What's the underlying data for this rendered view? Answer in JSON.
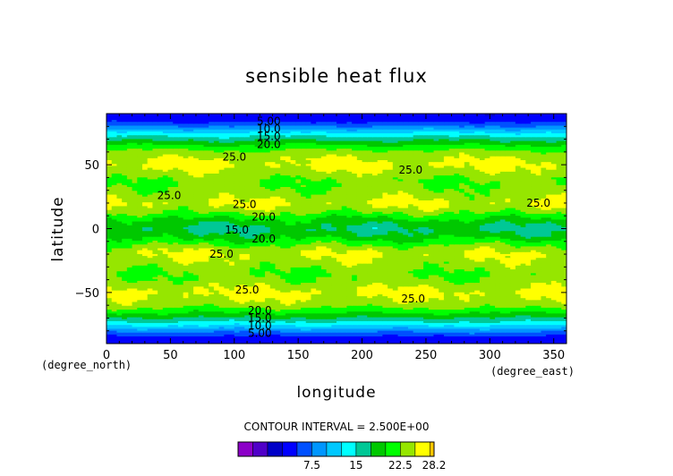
{
  "chart_data": {
    "type": "heatmap",
    "title": "sensible heat flux",
    "xlabel": "longitude",
    "ylabel": "latitude",
    "x_unit": "(degree_east)",
    "y_unit": "(degree_north)",
    "xlim": [
      0,
      360
    ],
    "ylim": [
      -90,
      90
    ],
    "x_ticks": [
      0,
      50,
      100,
      150,
      200,
      250,
      300,
      350
    ],
    "y_ticks": [
      50,
      0,
      -50
    ],
    "contour_interval_text": "CONTOUR INTERVAL = 2.500E+00",
    "contour_labels": [
      {
        "text": "5.00",
        "lon": 127,
        "lat": 84
      },
      {
        "text": "10.0",
        "lon": 127,
        "lat": 78
      },
      {
        "text": "15.0",
        "lon": 127,
        "lat": 72
      },
      {
        "text": "20.0",
        "lon": 127,
        "lat": 66
      },
      {
        "text": "25.0",
        "lon": 100,
        "lat": 56
      },
      {
        "text": "25.0",
        "lon": 238,
        "lat": 46
      },
      {
        "text": "25.0",
        "lon": 49,
        "lat": 26
      },
      {
        "text": "25.0",
        "lon": 108,
        "lat": 19
      },
      {
        "text": "25.0",
        "lon": 338,
        "lat": 20
      },
      {
        "text": "20.0",
        "lon": 123,
        "lat": 9
      },
      {
        "text": "15.0",
        "lon": 102,
        "lat": -1
      },
      {
        "text": "20.0",
        "lon": 123,
        "lat": -8
      },
      {
        "text": "25.0",
        "lon": 90,
        "lat": -20
      },
      {
        "text": "25.0",
        "lon": 110,
        "lat": -48
      },
      {
        "text": "25.0",
        "lon": 240,
        "lat": -55
      },
      {
        "text": "20.0",
        "lon": 120,
        "lat": -64
      },
      {
        "text": "15.0",
        "lon": 120,
        "lat": -70
      },
      {
        "text": "10.0",
        "lon": 120,
        "lat": -76
      },
      {
        "text": "5.00",
        "lon": 120,
        "lat": -82
      }
    ],
    "zonal_profile": {
      "lat": [
        -90,
        -85,
        -80,
        -75,
        -70,
        -65,
        -60,
        -55,
        -50,
        -45,
        -40,
        -35,
        -30,
        -25,
        -20,
        -15,
        -10,
        -5,
        0,
        5,
        10,
        15,
        20,
        25,
        30,
        35,
        40,
        45,
        50,
        55,
        60,
        65,
        70,
        75,
        80,
        85,
        90
      ],
      "value": [
        3,
        4,
        8,
        13,
        17,
        20.5,
        23.5,
        24.8,
        25.5,
        24.5,
        23,
        22.5,
        23.3,
        24.3,
        25.2,
        23.8,
        21,
        18.5,
        17,
        18.5,
        21,
        23.8,
        25.2,
        24.2,
        23.2,
        22.5,
        23,
        24.5,
        25.5,
        24.8,
        23.5,
        20.5,
        17,
        13,
        8,
        4,
        3
      ]
    },
    "colorbar": {
      "colors": [
        "#8c00c8",
        "#5000c8",
        "#0000c8",
        "#0000ff",
        "#0050ff",
        "#0096ff",
        "#00c8ff",
        "#00ffff",
        "#00c896",
        "#00c800",
        "#00ff00",
        "#96e600",
        "#ffff00",
        "#ffc800",
        "#ff9600",
        "#ff6400",
        "#ff0000",
        "#ffb4b4"
      ],
      "levels": [
        -5,
        -2.5,
        0,
        2.5,
        5,
        7.5,
        10,
        12.5,
        15,
        17.5,
        20,
        22.5,
        25,
        27.5,
        28.2
      ],
      "tick_values": [
        7.5,
        15,
        22.5
      ],
      "tick_labels": [
        "7.5",
        "15",
        "22.5"
      ],
      "max_label": "28.2"
    }
  }
}
